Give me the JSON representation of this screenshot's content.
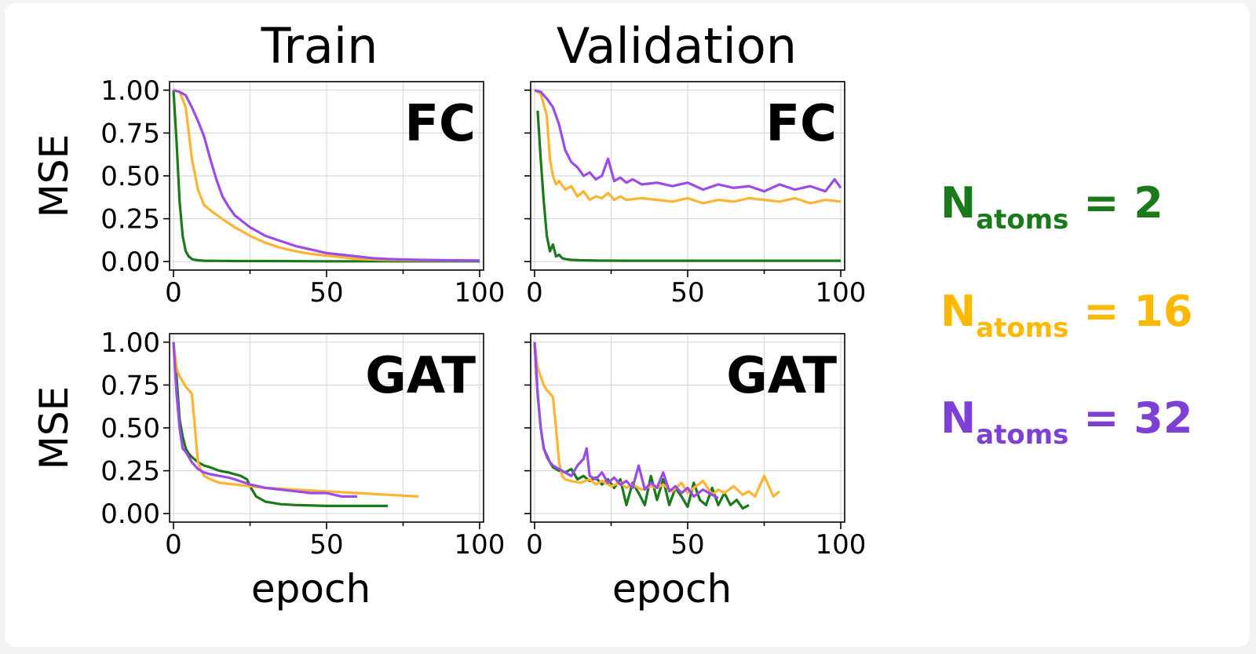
{
  "colors": {
    "n2": "#1a7a1a",
    "n16": "#ffb333",
    "n32": "#9b4be8",
    "axis": "#000000",
    "grid": "#d9d9d9"
  },
  "columns": [
    "Train",
    "Validation"
  ],
  "legend": [
    {
      "symbol": "N",
      "sub": "atoms",
      "suffix": " = 2",
      "color": "#1a7a1a"
    },
    {
      "symbol": "N",
      "sub": "atoms",
      "suffix": " = 16",
      "color": "#ffb800"
    },
    {
      "symbol": "N",
      "sub": "atoms",
      "suffix": " = 32",
      "color": "#7d3fd6"
    }
  ],
  "chart_data": [
    {
      "type": "line",
      "model": "FC",
      "split": "Train",
      "xlabel": "",
      "ylabel": "MSE",
      "xlim": [
        0,
        100
      ],
      "ylim": [
        0,
        1
      ],
      "xticks": [
        "0",
        "50",
        "100"
      ],
      "yticks": [
        "0.00",
        "0.25",
        "0.50",
        "0.75",
        "1.00"
      ],
      "grid": true,
      "series": [
        {
          "name": "N_atoms = 2",
          "color": "#1a7a1a",
          "x": [
            0,
            1,
            2,
            3,
            4,
            5,
            6,
            7,
            8,
            10,
            15,
            20,
            30,
            50,
            70,
            100
          ],
          "y": [
            1.0,
            0.7,
            0.35,
            0.15,
            0.06,
            0.03,
            0.015,
            0.01,
            0.008,
            0.005,
            0.004,
            0.003,
            0.003,
            0.002,
            0.002,
            0.002
          ]
        },
        {
          "name": "N_atoms = 16",
          "color": "#ffb333",
          "x": [
            0,
            2,
            4,
            6,
            8,
            10,
            12,
            15,
            20,
            25,
            30,
            35,
            40,
            45,
            50,
            55,
            60,
            70,
            80,
            100
          ],
          "y": [
            1.0,
            0.99,
            0.9,
            0.6,
            0.42,
            0.33,
            0.3,
            0.26,
            0.2,
            0.15,
            0.11,
            0.08,
            0.06,
            0.045,
            0.035,
            0.025,
            0.015,
            0.01,
            0.008,
            0.006
          ]
        },
        {
          "name": "N_atoms = 32",
          "color": "#9b4be8",
          "x": [
            0,
            2,
            4,
            6,
            8,
            10,
            12,
            14,
            16,
            18,
            20,
            25,
            30,
            35,
            40,
            45,
            50,
            55,
            60,
            65,
            70,
            80,
            90,
            100
          ],
          "y": [
            1.0,
            0.99,
            0.97,
            0.9,
            0.82,
            0.73,
            0.6,
            0.48,
            0.38,
            0.32,
            0.27,
            0.2,
            0.15,
            0.12,
            0.09,
            0.07,
            0.05,
            0.04,
            0.03,
            0.02,
            0.015,
            0.01,
            0.008,
            0.006
          ]
        }
      ]
    },
    {
      "type": "line",
      "model": "FC",
      "split": "Validation",
      "xlabel": "",
      "ylabel": "",
      "xlim": [
        0,
        100
      ],
      "ylim": [
        0,
        1
      ],
      "xticks": [
        "0",
        "50",
        "100"
      ],
      "yticks": [],
      "grid": true,
      "series": [
        {
          "name": "N_atoms = 2",
          "color": "#1a7a1a",
          "x": [
            1,
            2,
            3,
            4,
            5,
            6,
            7,
            8,
            9,
            10,
            12,
            15,
            20,
            30,
            50,
            70,
            100
          ],
          "y": [
            0.88,
            0.6,
            0.35,
            0.15,
            0.06,
            0.1,
            0.03,
            0.04,
            0.02,
            0.015,
            0.01,
            0.008,
            0.006,
            0.005,
            0.005,
            0.005,
            0.005
          ]
        },
        {
          "name": "N_atoms = 16",
          "color": "#ffb333",
          "x": [
            0,
            2,
            4,
            5,
            6,
            7,
            8,
            10,
            12,
            14,
            16,
            18,
            20,
            22,
            24,
            26,
            28,
            30,
            35,
            40,
            45,
            50,
            55,
            60,
            65,
            70,
            75,
            80,
            85,
            90,
            95,
            100
          ],
          "y": [
            1.0,
            0.98,
            0.85,
            0.6,
            0.5,
            0.45,
            0.47,
            0.42,
            0.44,
            0.38,
            0.41,
            0.36,
            0.38,
            0.37,
            0.4,
            0.36,
            0.38,
            0.36,
            0.37,
            0.36,
            0.35,
            0.37,
            0.34,
            0.36,
            0.35,
            0.37,
            0.36,
            0.35,
            0.37,
            0.34,
            0.36,
            0.35
          ]
        },
        {
          "name": "N_atoms = 32",
          "color": "#9b4be8",
          "x": [
            0,
            2,
            4,
            6,
            8,
            10,
            12,
            14,
            16,
            18,
            20,
            22,
            24,
            26,
            28,
            30,
            32,
            35,
            40,
            45,
            50,
            55,
            60,
            65,
            70,
            75,
            80,
            85,
            90,
            95,
            98,
            100
          ],
          "y": [
            1.0,
            0.99,
            0.95,
            0.9,
            0.8,
            0.65,
            0.58,
            0.55,
            0.5,
            0.52,
            0.48,
            0.5,
            0.6,
            0.47,
            0.49,
            0.46,
            0.48,
            0.45,
            0.46,
            0.44,
            0.46,
            0.42,
            0.45,
            0.43,
            0.44,
            0.41,
            0.45,
            0.42,
            0.44,
            0.41,
            0.48,
            0.43
          ]
        }
      ]
    },
    {
      "type": "line",
      "model": "GAT",
      "split": "Train",
      "xlabel": "epoch",
      "ylabel": "MSE",
      "xlim": [
        0,
        100
      ],
      "ylim": [
        0,
        1
      ],
      "xticks": [
        "0",
        "50",
        "100"
      ],
      "yticks": [
        "0.00",
        "0.25",
        "0.50",
        "0.75",
        "1.00"
      ],
      "grid": true,
      "series": [
        {
          "name": "N_atoms = 2",
          "color": "#1a7a1a",
          "x": [
            0,
            1,
            2,
            3,
            4,
            5,
            6,
            8,
            10,
            12,
            15,
            18,
            20,
            22,
            24,
            25,
            27,
            30,
            35,
            40,
            50,
            60,
            70
          ],
          "y": [
            1.0,
            0.8,
            0.55,
            0.45,
            0.38,
            0.35,
            0.33,
            0.3,
            0.28,
            0.27,
            0.25,
            0.24,
            0.23,
            0.22,
            0.2,
            0.16,
            0.1,
            0.07,
            0.055,
            0.05,
            0.045,
            0.045,
            0.045
          ]
        },
        {
          "name": "N_atoms = 16",
          "color": "#ffb333",
          "x": [
            0,
            1,
            2,
            3,
            4,
            5,
            6,
            7,
            8,
            9,
            10,
            12,
            15,
            20,
            25,
            30,
            40,
            50,
            60,
            70,
            80
          ],
          "y": [
            1.0,
            0.85,
            0.8,
            0.77,
            0.74,
            0.72,
            0.7,
            0.5,
            0.3,
            0.25,
            0.22,
            0.2,
            0.18,
            0.17,
            0.16,
            0.15,
            0.14,
            0.13,
            0.12,
            0.11,
            0.1
          ]
        },
        {
          "name": "N_atoms = 32",
          "color": "#9b4be8",
          "x": [
            0,
            1,
            2,
            3,
            4,
            5,
            6,
            8,
            10,
            12,
            15,
            18,
            20,
            25,
            30,
            35,
            40,
            45,
            50,
            55,
            60
          ],
          "y": [
            1.0,
            0.7,
            0.5,
            0.38,
            0.36,
            0.33,
            0.3,
            0.26,
            0.24,
            0.23,
            0.22,
            0.21,
            0.2,
            0.17,
            0.15,
            0.14,
            0.13,
            0.12,
            0.12,
            0.1,
            0.1
          ]
        }
      ]
    },
    {
      "type": "line",
      "model": "GAT",
      "split": "Validation",
      "xlabel": "epoch",
      "ylabel": "",
      "xlim": [
        0,
        100
      ],
      "ylim": [
        0,
        1
      ],
      "xticks": [
        "0",
        "50",
        "100"
      ],
      "yticks": [],
      "grid": true,
      "series": [
        {
          "name": "N_atoms = 2",
          "color": "#1a7a1a",
          "x": [
            0,
            1,
            2,
            3,
            4,
            5,
            6,
            8,
            10,
            12,
            14,
            16,
            18,
            20,
            22,
            24,
            26,
            28,
            30,
            32,
            34,
            36,
            38,
            40,
            42,
            44,
            46,
            48,
            50,
            52,
            54,
            56,
            58,
            60,
            62,
            64,
            66,
            68,
            70
          ],
          "y": [
            1.0,
            0.7,
            0.5,
            0.38,
            0.34,
            0.3,
            0.27,
            0.25,
            0.24,
            0.26,
            0.2,
            0.22,
            0.19,
            0.21,
            0.17,
            0.2,
            0.15,
            0.2,
            0.05,
            0.18,
            0.12,
            0.05,
            0.22,
            0.08,
            0.2,
            0.05,
            0.15,
            0.1,
            0.04,
            0.18,
            0.08,
            0.05,
            0.15,
            0.05,
            0.12,
            0.05,
            0.08,
            0.03,
            0.05
          ]
        },
        {
          "name": "N_atoms = 16",
          "color": "#ffb333",
          "x": [
            0,
            1,
            2,
            3,
            4,
            5,
            6,
            7,
            8,
            9,
            10,
            12,
            15,
            18,
            20,
            22,
            25,
            28,
            30,
            32,
            35,
            38,
            40,
            42,
            45,
            48,
            50,
            52,
            55,
            58,
            60,
            62,
            65,
            68,
            70,
            72,
            75,
            78,
            80
          ],
          "y": [
            1.0,
            0.85,
            0.8,
            0.75,
            0.72,
            0.7,
            0.68,
            0.5,
            0.3,
            0.22,
            0.2,
            0.19,
            0.18,
            0.2,
            0.17,
            0.19,
            0.16,
            0.18,
            0.15,
            0.17,
            0.14,
            0.16,
            0.15,
            0.17,
            0.13,
            0.18,
            0.12,
            0.15,
            0.19,
            0.11,
            0.14,
            0.12,
            0.16,
            0.11,
            0.13,
            0.1,
            0.22,
            0.1,
            0.13
          ]
        },
        {
          "name": "N_atoms = 32",
          "color": "#9b4be8",
          "x": [
            0,
            1,
            2,
            3,
            4,
            5,
            6,
            8,
            10,
            12,
            14,
            16,
            17,
            18,
            20,
            22,
            24,
            26,
            28,
            30,
            32,
            34,
            36,
            38,
            40,
            42,
            44,
            46,
            48,
            50,
            52,
            55,
            58,
            60
          ],
          "y": [
            1.0,
            0.7,
            0.5,
            0.38,
            0.33,
            0.3,
            0.28,
            0.26,
            0.24,
            0.22,
            0.28,
            0.32,
            0.38,
            0.22,
            0.2,
            0.24,
            0.18,
            0.21,
            0.17,
            0.19,
            0.15,
            0.28,
            0.14,
            0.18,
            0.15,
            0.24,
            0.13,
            0.16,
            0.12,
            0.15,
            0.1,
            0.14,
            0.11,
            0.09
          ]
        }
      ]
    }
  ]
}
